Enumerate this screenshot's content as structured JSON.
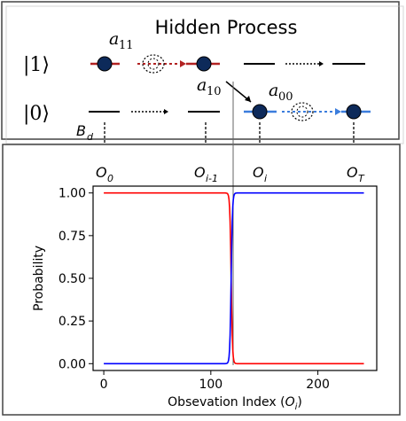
{
  "hidden_process": {
    "title": "Hidden Process",
    "state_1": "|1⟩",
    "state_0": "|0⟩",
    "a11": "a",
    "a11_sub": "11",
    "a10": "a",
    "a10_sub": "10",
    "a00": "a",
    "a00_sub": "00",
    "bd": "B",
    "bd_sub": "d",
    "colors": {
      "state1": "#b22222",
      "state0": "#3b7ddd",
      "node": "#0d2a5a"
    }
  },
  "observations": [
    {
      "label": "O",
      "sub": "0"
    },
    {
      "label": "O",
      "sub": "i-1"
    },
    {
      "label": "O",
      "sub": "i"
    },
    {
      "label": "O",
      "sub": "T"
    }
  ],
  "chart_data": {
    "type": "line",
    "xlabel_main": "Obsevation Index (",
    "xlabel_var": "O",
    "xlabel_sub": "i",
    "xlabel_end": ")",
    "ylabel": "Probability",
    "xlim": [
      -10,
      255
    ],
    "ylim": [
      -0.04,
      1.04
    ],
    "x_ticks": [
      "0",
      "100",
      "200"
    ],
    "x_tick_values": [
      0,
      100,
      200
    ],
    "y_ticks": [
      "0.00",
      "0.25",
      "0.50",
      "0.75",
      "1.00"
    ],
    "y_tick_values": [
      0,
      0.25,
      0.5,
      0.75,
      1.0
    ],
    "grid": false,
    "series": [
      {
        "color": "#ff0000",
        "transition_center": 119,
        "from": 1.0,
        "to": 0.0
      },
      {
        "color": "#0000ff",
        "transition_center": 119,
        "from": 0.0,
        "to": 1.0
      }
    ],
    "x_range": [
      0,
      243
    ]
  }
}
